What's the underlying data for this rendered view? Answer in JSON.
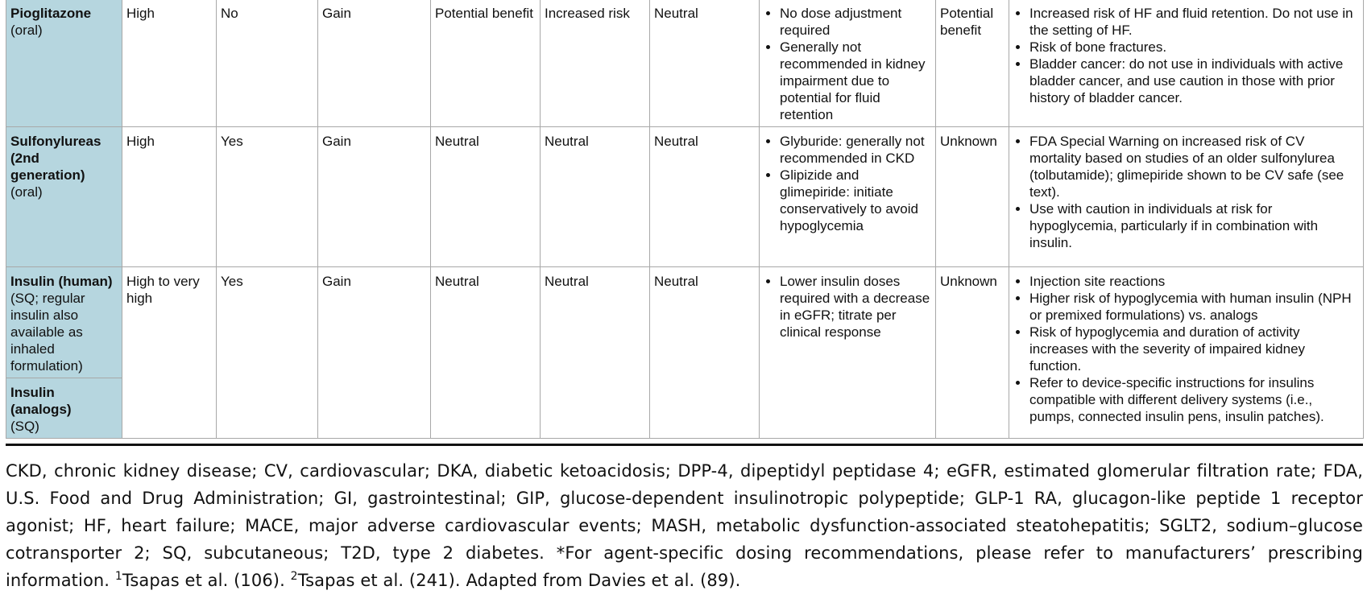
{
  "rows": [
    {
      "drug": "Pioglitazone",
      "route": "(oral)",
      "efficacy": "High",
      "hypoglycemia": "No",
      "weight": "Gain",
      "cv_ascvd": "Potential benefit",
      "cv_hf": "Increased risk",
      "renal": "Neutral",
      "dosing": [
        "No dose adjustment required",
        "Generally not recommended in kidney impairment due to potential for fluid retention"
      ],
      "mash": "Potential benefit",
      "notes": [
        "Increased risk of HF and fluid retention. Do not use in the setting of HF.",
        "Risk of bone fractures.",
        "Bladder cancer: do not use in individuals with active bladder cancer, and use caution in those with prior history of bladder cancer."
      ]
    },
    {
      "drug": "Sulfonylureas (2nd generation)",
      "route": "(oral)",
      "efficacy": "High",
      "hypoglycemia": "Yes",
      "weight": "Gain",
      "cv_ascvd": "Neutral",
      "cv_hf": "Neutral",
      "renal": "Neutral",
      "dosing": [
        "Glyburide: generally not recommended in CKD",
        "Glipizide and glimepiride: initiate conservatively to avoid hypoglycemia"
      ],
      "mash": "Unknown",
      "notes": [
        "FDA Special Warning on increased risk of CV mortality based on studies of an older sulfonylurea (tolbutamide); glimepiride shown to be CV safe (see text).",
        "Use with caution in individuals at risk for hypoglycemia, particularly if in combination with insulin."
      ]
    },
    {
      "drug": "Insulin (human)",
      "route": "(SQ; regular insulin also available as inhaled formulation)",
      "drug2": "Insulin (analogs)",
      "route2": "(SQ)",
      "efficacy": "High to very high",
      "hypoglycemia": "Yes",
      "weight": "Gain",
      "cv_ascvd": "Neutral",
      "cv_hf": "Neutral",
      "renal": "Neutral",
      "dosing": [
        "Lower insulin doses required with a decrease in eGFR; titrate per clinical response"
      ],
      "mash": "Unknown",
      "notes": [
        "Injection site reactions",
        "Higher risk of hypoglycemia with human insulin (NPH or premixed formulations) vs. analogs",
        "Risk of hypoglycemia and duration of activity increases with the severity of impaired kidney function.",
        "Refer to device-specific instructions for insulins compatible with different delivery systems (i.e., pumps, connected insulin pens, insulin patches)."
      ]
    }
  ],
  "footnote": {
    "abbreviations": "CKD, chronic kidney disease; CV, cardiovascular; DKA, diabetic ketoacidosis; DPP-4, dipeptidyl peptidase 4; eGFR, estimated glomerular filtration rate; FDA, U.S. Food and Drug Administration; GI, gastrointestinal; GIP, glucose-dependent insulinotropic polypeptide; GLP-1 RA, glucagon-like peptide 1 receptor agonist; HF, heart failure; MACE, major adverse cardiovascular events; MASH, metabolic dysfunction-associated steatohepatitis; SGLT2, sodium–glucose cotransporter 2; SQ, subcutaneous; T2D, type 2 diabetes. *For agent-specific dosing recommendations, please refer to manufacturers’ prescribing information. ",
    "ref1_sup": "1",
    "ref1_text": "Tsapas et al. (106). ",
    "ref2_sup": "2",
    "ref2_text": "Tsapas et al. (241). Adapted from Davies et al. (89)."
  }
}
